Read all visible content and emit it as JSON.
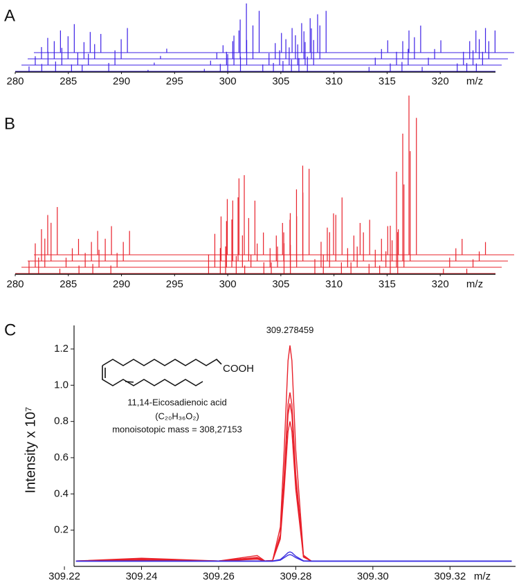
{
  "chart_data": [
    {
      "type": "waterfall",
      "panel_label": "A",
      "xlabel": "m/z",
      "color": "#3b1fe6",
      "xlim": [
        280,
        325.2
      ],
      "xticks": [
        280,
        285,
        290,
        295,
        300,
        305,
        310,
        315,
        320
      ],
      "x": [
        281.3,
        282.5,
        283.8,
        285.3,
        286.3,
        288.8,
        292.5,
        297.8,
        299.3,
        300,
        301.2,
        303.3,
        304.3,
        305.2,
        306,
        306.7,
        307.5,
        313.3,
        315.3,
        316.4,
        318.3,
        321.6,
        322.5,
        323.4
      ],
      "series": [
        {
          "values": [
            10,
            15,
            20,
            14,
            13,
            17,
            3,
            5,
            15,
            35,
            30,
            14,
            17,
            21,
            24,
            27,
            30,
            9,
            16,
            19,
            9,
            16,
            17,
            16
          ]
        },
        {
          "values": [
            18,
            27,
            35,
            25,
            23,
            30,
            5,
            9,
            27,
            60,
            51,
            24,
            30,
            36,
            42,
            47,
            51,
            15,
            27,
            33,
            15,
            27,
            30,
            27
          ]
        },
        {
          "values": [
            24,
            36,
            46,
            34,
            30,
            40,
            6,
            12,
            36,
            80,
            68,
            32,
            40,
            48,
            56,
            62,
            68,
            20,
            36,
            44,
            20,
            36,
            40,
            36
          ]
        },
        {
          "values": [
            30,
            45,
            58,
            42,
            38,
            50,
            8,
            15,
            45,
            100,
            85,
            40,
            50,
            60,
            70,
            78,
            85,
            25,
            45,
            55,
            25,
            45,
            50,
            45
          ]
        }
      ]
    },
    {
      "type": "waterfall",
      "panel_label": "B",
      "xlabel": "m/z",
      "color": "#e8202a",
      "xlim": [
        280,
        325.2
      ],
      "xticks": [
        280,
        285,
        290,
        295,
        300,
        305,
        310,
        315,
        320
      ],
      "x": [
        281.3,
        282.2,
        284.2,
        286,
        287.3,
        289,
        298.2,
        299.3,
        299.8,
        300.8,
        301.6,
        303.4,
        304.1,
        305.3,
        305.9,
        308.2,
        309,
        310.7,
        311.6,
        313.3,
        314.3,
        315.3,
        316,
        320.3,
        322.5
      ],
      "series": [
        {
          "values": [
            8,
            10,
            3,
            5,
            6,
            5,
            12,
            16,
            17,
            11,
            5,
            7,
            7,
            19,
            18,
            9,
            12,
            7,
            7,
            6,
            5,
            30,
            26,
            3,
            3
          ]
        },
        {
          "values": [
            15,
            18,
            6,
            9,
            11,
            9,
            21,
            29,
            30,
            20,
            8,
            12,
            13,
            34,
            32,
            16,
            22,
            12,
            13,
            11,
            10,
            60,
            52,
            6,
            5
          ]
        },
        {
          "values": [
            20,
            24,
            8,
            12,
            14,
            12,
            28,
            38,
            40,
            27,
            11,
            16,
            18,
            45,
            43,
            21,
            29,
            16,
            18,
            14,
            13,
            80,
            69,
            8,
            6
          ]
        },
        {
          "values": [
            25,
            30,
            10,
            15,
            18,
            15,
            35,
            48,
            50,
            34,
            14,
            20,
            22,
            56,
            54,
            26,
            36,
            20,
            22,
            18,
            16,
            100,
            86,
            10,
            8
          ]
        }
      ]
    },
    {
      "type": "line",
      "panel_label": "C",
      "xlabel": "m/z",
      "ylabel": "Intensity x 10⁷",
      "annotation": "309.278459",
      "structure": {
        "group": "COOH",
        "name": "11,14-Eicosadienoic acid",
        "formula": "(C₂₀H₃₆O₂)",
        "mass": "monoisotopic mass = 308,27153"
      },
      "xlim": [
        309.2225,
        309.337
      ],
      "ylim": [
        0,
        1.33
      ],
      "xticks": [
        309.22,
        309.24,
        309.26,
        309.28,
        {
          "value": 309.3,
          "label": "309.30"
        },
        309.32
      ],
      "yticks": [
        0.2,
        0.4,
        0.6,
        0.8,
        {
          "value": 1,
          "label": "1.0"
        },
        1.2
      ],
      "x": [
        309.223,
        309.24,
        309.26,
        309.27,
        309.272,
        309.274,
        309.276,
        309.277,
        309.278,
        309.2785,
        309.279,
        309.28,
        309.282,
        309.284,
        309.286,
        309.29,
        309.3,
        309.32,
        309.336
      ],
      "series": [
        {
          "color": "#e8202a",
          "values": [
            0.03,
            0.045,
            0.03,
            0.06,
            0.03,
            0.033,
            0.217,
            0.642,
            1.136,
            1.22,
            1.136,
            0.642,
            0.062,
            0.03,
            0.03,
            0.03,
            0.03,
            0.03,
            0.03
          ]
        },
        {
          "color": "#e8202a",
          "values": [
            0.03,
            0.04,
            0.03,
            0.05,
            0.03,
            0.032,
            0.176,
            0.508,
            0.894,
            0.96,
            0.894,
            0.508,
            0.055,
            0.03,
            0.03,
            0.03,
            0.03,
            0.03,
            0.03
          ]
        },
        {
          "color": "#e8202a",
          "values": [
            0.03,
            0.035,
            0.03,
            0.045,
            0.03,
            0.032,
            0.167,
            0.477,
            0.838,
            0.9,
            0.838,
            0.477,
            0.053,
            0.03,
            0.03,
            0.03,
            0.03,
            0.03,
            0.03
          ]
        },
        {
          "color": "#e8202a",
          "values": [
            0.03,
            0.035,
            0.03,
            0.04,
            0.03,
            0.032,
            0.151,
            0.426,
            0.745,
            0.8,
            0.745,
            0.426,
            0.051,
            0.03,
            0.03,
            0.03,
            0.03,
            0.03,
            0.03
          ]
        },
        {
          "color": "#3a2ee0",
          "values": [
            0.03,
            0.03,
            0.03,
            0.03,
            0.03,
            0.03,
            0.038,
            0.056,
            0.076,
            0.08,
            0.076,
            0.056,
            0.031,
            0.03,
            0.03,
            0.03,
            0.03,
            0.03,
            0.03
          ]
        },
        {
          "color": "#3a2ee0",
          "values": [
            0.028,
            0.028,
            0.028,
            0.028,
            0.028,
            0.028,
            0.034,
            0.048,
            0.062,
            0.065,
            0.062,
            0.048,
            0.029,
            0.028,
            0.028,
            0.028,
            0.028,
            0.028,
            0.028
          ]
        }
      ]
    }
  ]
}
